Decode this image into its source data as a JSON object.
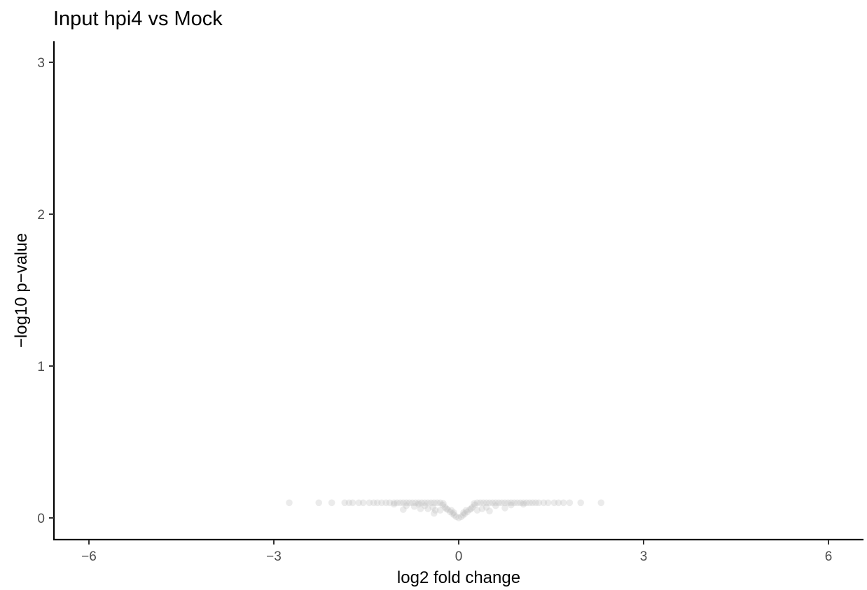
{
  "chart_data": {
    "type": "scatter",
    "title": "Input  hpi4 vs Mock",
    "xlabel": "log2 fold change",
    "ylabel": "−log10 p−value",
    "xlim": [
      -6.5,
      6.5
    ],
    "ylim": [
      -0.15,
      3.15
    ],
    "xticks": [
      -6,
      -3,
      0,
      3,
      6
    ],
    "xtick_labels": [
      "−6",
      "−3",
      "0",
      "3",
      "6"
    ],
    "yticks": [
      0,
      1,
      2,
      3
    ],
    "ytick_labels": [
      "0",
      "1",
      "2",
      "3"
    ],
    "grid": false,
    "legend": "none",
    "point_color": "#bebebe",
    "point_alpha": 0.3,
    "series": [
      {
        "points": [
          [
            -2.75,
            0.1
          ],
          [
            -2.27,
            0.1
          ],
          [
            -2.06,
            0.1
          ],
          [
            -1.85,
            0.1
          ],
          [
            -1.78,
            0.1
          ],
          [
            -1.72,
            0.1
          ],
          [
            -1.62,
            0.1
          ],
          [
            -1.55,
            0.1
          ],
          [
            -1.45,
            0.1
          ],
          [
            -1.38,
            0.1
          ],
          [
            -1.32,
            0.1
          ],
          [
            -1.25,
            0.1
          ],
          [
            -1.18,
            0.1
          ],
          [
            -1.12,
            0.1
          ],
          [
            -1.05,
            0.1
          ],
          [
            -1.0,
            0.1
          ],
          [
            -0.95,
            0.1
          ],
          [
            -0.9,
            0.1
          ],
          [
            -0.85,
            0.1
          ],
          [
            -0.8,
            0.1
          ],
          [
            -0.75,
            0.1
          ],
          [
            -0.7,
            0.1
          ],
          [
            -0.65,
            0.1
          ],
          [
            -0.6,
            0.1
          ],
          [
            -0.55,
            0.1
          ],
          [
            -0.5,
            0.1
          ],
          [
            -0.45,
            0.1
          ],
          [
            -0.4,
            0.1
          ],
          [
            -0.35,
            0.1
          ],
          [
            -0.3,
            0.1
          ],
          [
            -0.42,
            0.07
          ],
          [
            -0.38,
            0.05
          ],
          [
            -0.55,
            0.08
          ],
          [
            -0.62,
            0.06
          ],
          [
            -0.72,
            0.075
          ],
          [
            -0.85,
            0.08
          ],
          [
            -0.9,
            0.055
          ],
          [
            -0.4,
            0.03
          ],
          [
            -0.26,
            0.085
          ],
          [
            -0.22,
            0.07
          ],
          [
            -0.18,
            0.055
          ],
          [
            -0.14,
            0.04
          ],
          [
            -0.1,
            0.028
          ],
          [
            -0.07,
            0.018
          ],
          [
            -0.04,
            0.008
          ],
          [
            0.0,
            0.0
          ],
          [
            0.04,
            0.008
          ],
          [
            0.07,
            0.018
          ],
          [
            0.1,
            0.028
          ],
          [
            0.14,
            0.04
          ],
          [
            0.18,
            0.055
          ],
          [
            0.22,
            0.07
          ],
          [
            0.26,
            0.085
          ],
          [
            0.3,
            0.1
          ],
          [
            0.35,
            0.1
          ],
          [
            0.4,
            0.1
          ],
          [
            0.45,
            0.1
          ],
          [
            0.5,
            0.1
          ],
          [
            0.55,
            0.1
          ],
          [
            0.6,
            0.1
          ],
          [
            0.65,
            0.1
          ],
          [
            0.7,
            0.1
          ],
          [
            0.75,
            0.1
          ],
          [
            0.8,
            0.1
          ],
          [
            0.85,
            0.1
          ],
          [
            0.9,
            0.1
          ],
          [
            0.95,
            0.1
          ],
          [
            1.0,
            0.1
          ],
          [
            1.05,
            0.1
          ],
          [
            1.1,
            0.1
          ],
          [
            1.15,
            0.1
          ],
          [
            1.2,
            0.1
          ],
          [
            1.25,
            0.1
          ],
          [
            1.3,
            0.1
          ],
          [
            1.38,
            0.1
          ],
          [
            1.45,
            0.1
          ],
          [
            1.55,
            0.1
          ],
          [
            1.62,
            0.1
          ],
          [
            1.7,
            0.1
          ],
          [
            1.8,
            0.1
          ],
          [
            1.98,
            0.1
          ],
          [
            2.31,
            0.1
          ],
          [
            0.38,
            0.06
          ],
          [
            0.45,
            0.07
          ],
          [
            0.6,
            0.08
          ],
          [
            0.75,
            0.065
          ],
          [
            0.5,
            0.045
          ],
          [
            0.3,
            0.05
          ],
          [
            -0.3,
            0.05
          ],
          [
            -0.5,
            0.06
          ],
          [
            -0.65,
            0.09
          ],
          [
            0.85,
            0.085
          ],
          [
            1.05,
            0.09
          ],
          [
            -1.05,
            0.09
          ],
          [
            -0.2,
            0.06
          ],
          [
            0.2,
            0.06
          ],
          [
            -0.12,
            0.05
          ],
          [
            0.12,
            0.05
          ],
          [
            -0.08,
            0.035
          ],
          [
            0.08,
            0.035
          ],
          [
            -0.25,
            0.095
          ],
          [
            0.25,
            0.095
          ]
        ]
      }
    ]
  }
}
